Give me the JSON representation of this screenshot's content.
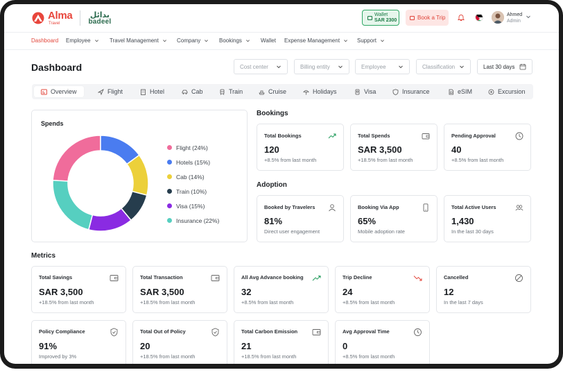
{
  "header": {
    "brand_name": "Alma",
    "brand_sub": "Travel",
    "partner_arabic": "بدائل",
    "partner_name": "badeel",
    "wallet_label": "Wallet",
    "wallet_amount": "SAR 2300",
    "book_trip_label": "Book a Trip",
    "user_name": "Ahmed",
    "user_role": "Admin"
  },
  "nav": {
    "items": [
      "Dashboard",
      "Employee",
      "Travel Management",
      "Company",
      "Bookings",
      "Wallet",
      "Expense Management",
      "Support"
    ],
    "active": "Dashboard"
  },
  "page": {
    "title": "Dashboard",
    "filters": [
      "Cost center",
      "Billing entity",
      "Employee",
      "Classification"
    ],
    "date_range": "Last 30 days"
  },
  "tabs": [
    "Overview",
    "Flight",
    "Hotel",
    "Cab",
    "Train",
    "Cruise",
    "Holidays",
    "Visa",
    "Insurance",
    "eSIM",
    "Excursion"
  ],
  "spends": {
    "title": "Spends",
    "legend": [
      {
        "label": "Flight (24%)",
        "color": "#f06c9b"
      },
      {
        "label": "Hotels (15%)",
        "color": "#4a7cf0"
      },
      {
        "label": "Cab (14%)",
        "color": "#ecd03a"
      },
      {
        "label": "Train (10%)",
        "color": "#263d4d"
      },
      {
        "label": "Visa (15%)",
        "color": "#8a2be2"
      },
      {
        "label": "Insurance (22%)",
        "color": "#56cfc0"
      }
    ]
  },
  "chart_data": {
    "type": "pie",
    "title": "Spends",
    "categories": [
      "Flight",
      "Hotels",
      "Cab",
      "Train",
      "Visa",
      "Insurance"
    ],
    "values": [
      24,
      15,
      14,
      10,
      15,
      22
    ],
    "colors": [
      "#f06c9b",
      "#4a7cf0",
      "#ecd03a",
      "#263d4d",
      "#8a2be2",
      "#56cfc0"
    ],
    "donut": true,
    "legend": "right"
  },
  "bookings": {
    "title": "Bookings",
    "cards": [
      {
        "label": "Total Bookings",
        "value": "120",
        "sub": "+8.5% from last month",
        "icon": "trend-up-icon"
      },
      {
        "label": "Total Spends",
        "value": "SAR 3,500",
        "sub": "+18.5% from last month",
        "icon": "wallet-icon"
      },
      {
        "label": "Pending Approval",
        "value": "40",
        "sub": "+8.5% from last month",
        "icon": "clock-icon"
      }
    ]
  },
  "adoption": {
    "title": "Adoption",
    "cards": [
      {
        "label": "Booked by Travelers",
        "value": "81%",
        "sub": "Direct user engagement",
        "icon": "user-icon"
      },
      {
        "label": "Booking Via App",
        "value": "65%",
        "sub": "Mobile adoption rate",
        "icon": "phone-icon"
      },
      {
        "label": "Total Active Users",
        "value": "1,430",
        "sub": "In the last 30 days",
        "icon": "users-icon"
      }
    ]
  },
  "metrics": {
    "title": "Metrics",
    "cards": [
      {
        "label": "Total Savings",
        "value": "SAR 3,500",
        "sub": "+18.5% from last month",
        "icon": "wallet-icon"
      },
      {
        "label": "Total Transaction",
        "value": "SAR 3,500",
        "sub": "+18.5% from last month",
        "icon": "wallet-icon"
      },
      {
        "label": "All Avg  Advance booking",
        "value": "32",
        "sub": "+8.5% from last month",
        "icon": "trend-up-icon"
      },
      {
        "label": "Trip Decline",
        "value": "24",
        "sub": "+8.5% from last month",
        "icon": "trend-down-icon"
      },
      {
        "label": "Cancelled",
        "value": "12",
        "sub": "In the last 7 days",
        "icon": "ban-icon"
      },
      {
        "label": "Policy Compliance",
        "value": "91%",
        "sub": "Improved by 3%",
        "icon": "shield-icon"
      },
      {
        "label": "Total Out of Policy",
        "value": "20",
        "sub": "+18.5% from last month",
        "icon": "shield-icon"
      },
      {
        "label": "Total Carbon Emission",
        "value": "21",
        "sub": "+18.5% from last month",
        "icon": "wallet-icon"
      },
      {
        "label": "Avg Approval Time",
        "value": "0",
        "sub": "+8.5% from last month",
        "icon": "clock-icon"
      }
    ]
  }
}
